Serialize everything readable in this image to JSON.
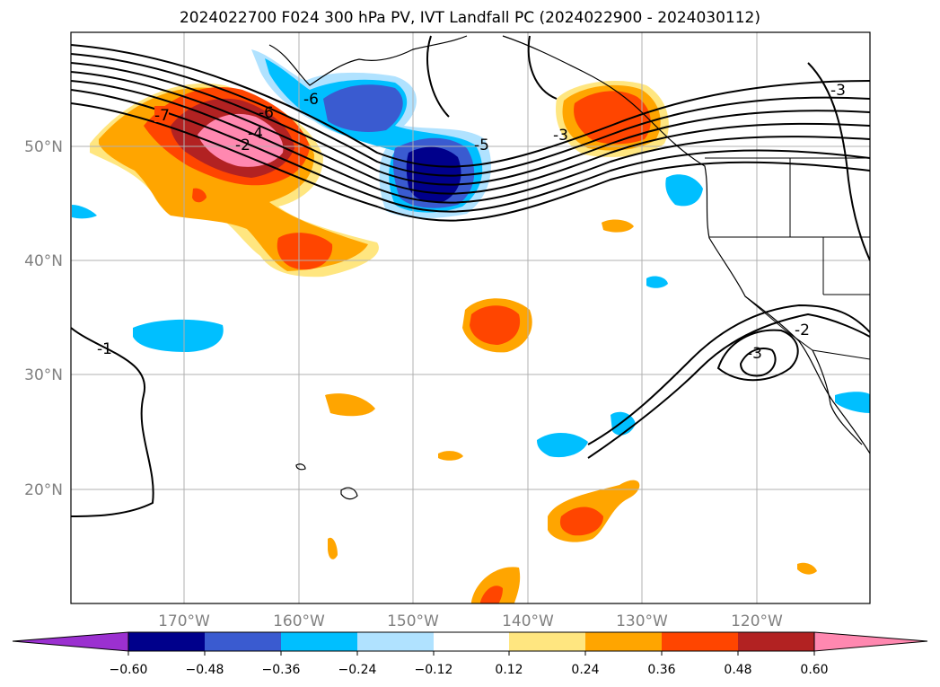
{
  "title": "2024022700 F024 300 hPa PV, IVT Landfall PC (2024022900 - 2024030112)",
  "map": {
    "lon_range": [
      -180,
      -110
    ],
    "lat_range": [
      10,
      60
    ],
    "lon_ticks": [
      "170°W",
      "160°W",
      "150°W",
      "140°W",
      "130°W",
      "120°W"
    ],
    "lat_ticks": [
      "50°N",
      "40°N",
      "30°N",
      "20°N"
    ],
    "tick_color": "#808080",
    "grid": true
  },
  "contour_labels": [
    {
      "text": "-7"
    },
    {
      "text": "-6"
    },
    {
      "text": "-4"
    },
    {
      "text": "-2"
    },
    {
      "text": "-6"
    },
    {
      "text": "-5"
    },
    {
      "text": "-3"
    },
    {
      "text": "-3"
    },
    {
      "text": "-2"
    },
    {
      "text": "-3"
    },
    {
      "text": "-1"
    }
  ],
  "colorbar": {
    "ticks": [
      "−0.60",
      "−0.48",
      "−0.36",
      "−0.24",
      "−0.12",
      "0.12",
      "0.24",
      "0.36",
      "0.48",
      "0.60"
    ],
    "colors": [
      "#9b30d0",
      "#00008b",
      "#3a5bd0",
      "#00bfff",
      "#b0e2ff",
      "#ffffff",
      "#ffe680",
      "#ffa500",
      "#ff4500",
      "#b22222",
      "#ff88b0"
    ]
  }
}
